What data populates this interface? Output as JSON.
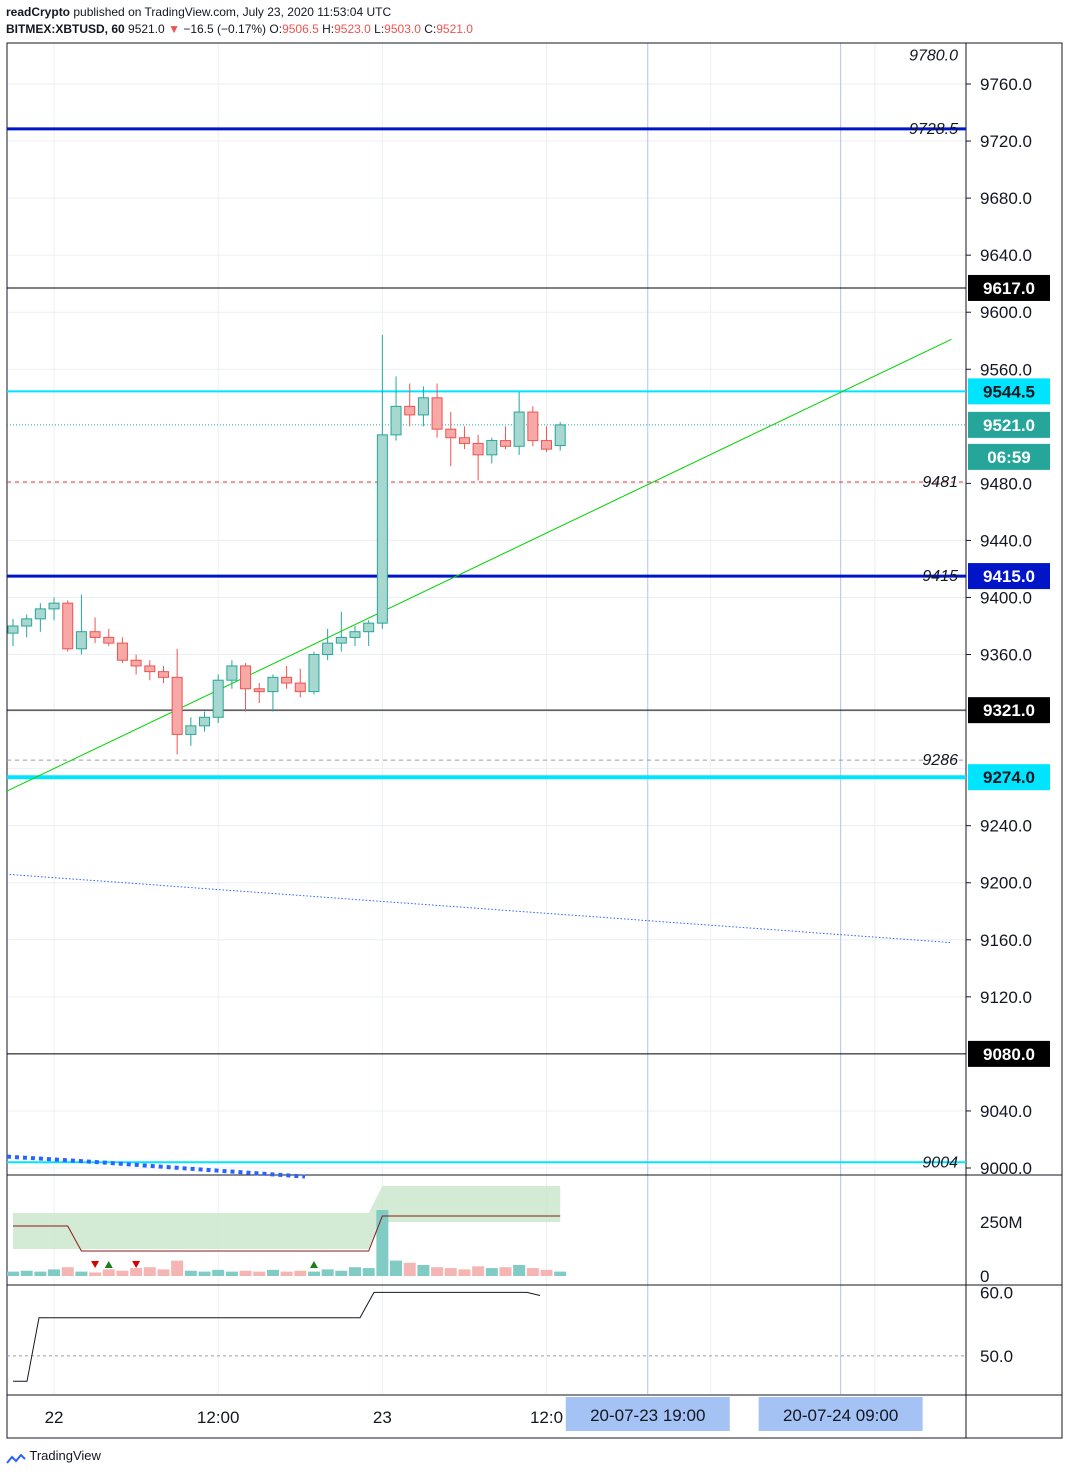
{
  "header": {
    "line1_author": "readCrypto",
    "line1_rest": "published on TradingView.com, July 23, 2020 11:53:04 UTC",
    "symbol": "BITMEX:XBTUSD, 60",
    "last": "9521.0",
    "change_arrow": "▼",
    "change": "−16.5 (−0.17%)",
    "o_label": "O:",
    "o_val": "9506.5",
    "h_label": "H:",
    "h_val": "9523.0",
    "l_label": "L:",
    "l_val": "9503.0",
    "c_label": "C:",
    "c_val": "9521.0"
  },
  "footer": {
    "brand": "TradingView",
    "icon": "tradingview-logo-icon"
  },
  "chart_data": {
    "type": "candlestick",
    "price_axis": {
      "ticks": [
        "9760.0",
        "9720.0",
        "9680.0",
        "9640.0",
        "9600.0",
        "9560.0",
        "9480.0",
        "9440.0",
        "9400.0",
        "9360.0",
        "9240.0",
        "9200.0",
        "9160.0",
        "9120.0",
        "9040.0",
        "9000.0"
      ],
      "range": [
        9000,
        9780
      ],
      "cut_top_label": "9780.0"
    },
    "time_axis": {
      "ticks": [
        {
          "label": "22",
          "i": 3
        },
        {
          "label": "12:00",
          "i": 15
        },
        {
          "label": "23",
          "i": 27
        },
        {
          "label": "12:0",
          "i": 39
        }
      ],
      "date_boxes": [
        "20-07-23   19:00",
        "20-07-24   09:00"
      ]
    },
    "candles": [
      [
        9375,
        9385,
        9366,
        9380
      ],
      [
        9380,
        9388,
        9372,
        9385
      ],
      [
        9385,
        9396,
        9376,
        9392
      ],
      [
        9392,
        9400,
        9384,
        9396
      ],
      [
        9396,
        9398,
        9362,
        9364
      ],
      [
        9364,
        9402,
        9360,
        9376
      ],
      [
        9376,
        9386,
        9368,
        9372
      ],
      [
        9372,
        9378,
        9366,
        9368
      ],
      [
        9368,
        9372,
        9354,
        9356
      ],
      [
        9356,
        9360,
        9346,
        9352
      ],
      [
        9352,
        9356,
        9342,
        9348
      ],
      [
        9348,
        9352,
        9340,
        9344
      ],
      [
        9344,
        9364,
        9290,
        9304
      ],
      [
        9304,
        9316,
        9296,
        9310
      ],
      [
        9310,
        9320,
        9306,
        9316
      ],
      [
        9316,
        9346,
        9312,
        9342
      ],
      [
        9342,
        9356,
        9336,
        9352
      ],
      [
        9352,
        9354,
        9320,
        9336
      ],
      [
        9336,
        9340,
        9326,
        9334
      ],
      [
        9334,
        9346,
        9320,
        9344
      ],
      [
        9344,
        9352,
        9336,
        9340
      ],
      [
        9340,
        9350,
        9330,
        9334
      ],
      [
        9334,
        9362,
        9332,
        9360
      ],
      [
        9360,
        9378,
        9356,
        9368
      ],
      [
        9368,
        9390,
        9362,
        9372
      ],
      [
        9372,
        9380,
        9366,
        9376
      ],
      [
        9376,
        9384,
        9366,
        9382
      ],
      [
        9382,
        9584,
        9378,
        9514
      ],
      [
        9514,
        9555,
        9510,
        9534
      ],
      [
        9534,
        9550,
        9520,
        9528
      ],
      [
        9528,
        9548,
        9520,
        9540
      ],
      [
        9540,
        9550,
        9512,
        9518
      ],
      [
        9518,
        9530,
        9492,
        9512
      ],
      [
        9512,
        9520,
        9504,
        9508
      ],
      [
        9508,
        9514,
        9482,
        9500
      ],
      [
        9500,
        9512,
        9494,
        9510
      ],
      [
        9510,
        9520,
        9504,
        9506
      ],
      [
        9506,
        9544,
        9500,
        9530
      ],
      [
        9530,
        9534,
        9506,
        9510
      ],
      [
        9510,
        9520,
        9502,
        9504
      ],
      [
        9506.5,
        9523,
        9503,
        9521
      ]
    ],
    "horizontal_lines": [
      {
        "price": 9728.5,
        "label": "9728.5",
        "color": "#0015c8",
        "style": "thick",
        "tag": false
      },
      {
        "price": 9617.0,
        "label": "9617.0",
        "color": "#000000",
        "style": "thin",
        "tag": true
      },
      {
        "price": 9544.5,
        "label": "9544.5",
        "color": "#00e5ff",
        "style": "medium",
        "tag": true
      },
      {
        "price": 9521.0,
        "label": "9521.0",
        "color": "#26a69a",
        "style": "dotted",
        "tag": true
      },
      {
        "price": 9481,
        "label": "9481",
        "color": "#e53935",
        "style": "dashed",
        "tag": false
      },
      {
        "price": 9415.0,
        "label": "9415.0",
        "color": "#0015c8",
        "style": "thick",
        "tag": true,
        "italic_label": "9415"
      },
      {
        "price": 9321.0,
        "label": "9321.0",
        "color": "#000000",
        "style": "thin",
        "tag": true
      },
      {
        "price": 9286,
        "label": "9286",
        "color": "#9e9e9e",
        "style": "dashed",
        "tag": false
      },
      {
        "price": 9274.0,
        "label": "9274.0",
        "color": "#00e5ff",
        "style": "thick",
        "tag": true
      },
      {
        "price": 9080.0,
        "label": "9080.0",
        "color": "#000000",
        "style": "thin",
        "tag": true
      },
      {
        "price": 9004,
        "label": "9004",
        "color": "#00e5ff",
        "style": "medium",
        "tag": false
      }
    ],
    "countdown": "06:59",
    "trendlines": [
      {
        "from": {
          "i": -0.5,
          "price": 9264
        },
        "to": {
          "i": 68.6,
          "price": 9581
        },
        "color": "#00d400",
        "style": "solid"
      },
      {
        "from": {
          "i": -0.5,
          "price": 9206
        },
        "to": {
          "i": 68.6,
          "price": 9158
        },
        "color": "#2962ff",
        "style": "dotted"
      }
    ],
    "vertical_lines_i": [
      46.4,
      60.5
    ],
    "volume_panel": {
      "ticks": [
        "250M",
        "0"
      ],
      "bars": [
        0.1,
        0.12,
        0.1,
        0.15,
        0.2,
        0.1,
        0.08,
        0.15,
        0.12,
        0.18,
        0.2,
        0.15,
        0.35,
        0.12,
        0.1,
        0.14,
        0.1,
        0.12,
        0.1,
        0.14,
        0.1,
        0.12,
        0.1,
        0.15,
        0.12,
        0.2,
        0.18,
        1.5,
        0.35,
        0.3,
        0.25,
        0.2,
        0.18,
        0.15,
        0.22,
        0.18,
        0.2,
        0.25,
        0.18,
        0.14,
        0.1
      ],
      "markers": [
        {
          "i": 6,
          "dir": "down"
        },
        {
          "i": 7,
          "dir": "up"
        },
        {
          "i": 9,
          "dir": "down"
        },
        {
          "i": 22,
          "dir": "up"
        }
      ]
    },
    "oscillator_panel": {
      "ticks": [
        "60.0",
        "50.0"
      ],
      "range": [
        44,
        61
      ]
    }
  }
}
